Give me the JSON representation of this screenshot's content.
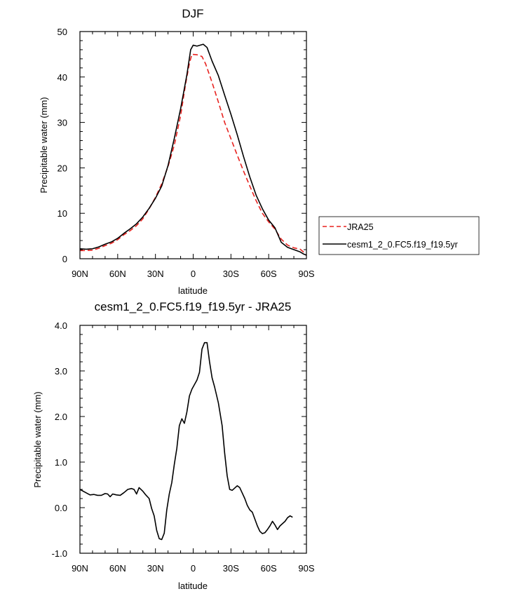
{
  "chart_data": [
    {
      "type": "line",
      "title": "DJF",
      "xlabel": "latitude",
      "ylabel": "Precipitable water (mm)",
      "xlim": [
        90,
        -90
      ],
      "ylim": [
        0,
        50
      ],
      "x_ticks": [
        {
          "value": 90,
          "label": "90N"
        },
        {
          "value": 60,
          "label": "60N"
        },
        {
          "value": 30,
          "label": "30N"
        },
        {
          "value": 0,
          "label": "0"
        },
        {
          "value": -30,
          "label": "30S"
        },
        {
          "value": -60,
          "label": "60S"
        },
        {
          "value": -90,
          "label": "90S"
        }
      ],
      "y_ticks": [
        {
          "value": 0,
          "label": "0"
        },
        {
          "value": 10,
          "label": "10"
        },
        {
          "value": 20,
          "label": "20"
        },
        {
          "value": 30,
          "label": "30"
        },
        {
          "value": 40,
          "label": "40"
        },
        {
          "value": 50,
          "label": "50"
        }
      ],
      "legend": {
        "placement": "right",
        "entries": [
          "JRA25",
          "cesm1_2_0.FC5.f19_f19.5yr"
        ]
      },
      "series": [
        {
          "name": "JRA25",
          "color": "#e8221f",
          "dash": "dashed",
          "points": [
            [
              90,
              1.8
            ],
            [
              85,
              1.8
            ],
            [
              80,
              1.9
            ],
            [
              75,
              2.3
            ],
            [
              70,
              2.9
            ],
            [
              65,
              3.4
            ],
            [
              60,
              4.2
            ],
            [
              55,
              5.3
            ],
            [
              50,
              6.2
            ],
            [
              45,
              7.3
            ],
            [
              40,
              8.8
            ],
            [
              35,
              11.0
            ],
            [
              30,
              13.5
            ],
            [
              25,
              16.5
            ],
            [
              20,
              20.3
            ],
            [
              15,
              25.0
            ],
            [
              10,
              31.5
            ],
            [
              6,
              38.5
            ],
            [
              3,
              43.0
            ],
            [
              1,
              45.0
            ],
            [
              -3,
              44.9
            ],
            [
              -7,
              44.5
            ],
            [
              -10,
              42.8
            ],
            [
              -15,
              38.8
            ],
            [
              -20,
              34.5
            ],
            [
              -25,
              30.0
            ],
            [
              -30,
              26.4
            ],
            [
              -35,
              22.8
            ],
            [
              -40,
              19.3
            ],
            [
              -45,
              16.0
            ],
            [
              -50,
              12.8
            ],
            [
              -55,
              10.0
            ],
            [
              -60,
              8.1
            ],
            [
              -65,
              6.5
            ],
            [
              -70,
              4.3
            ],
            [
              -75,
              3.0
            ],
            [
              -80,
              2.4
            ],
            [
              -85,
              2.1
            ],
            [
              -88,
              1.4
            ],
            [
              -90,
              0.7
            ]
          ]
        },
        {
          "name": "cesm1_2_0.FC5.f19_f19.5yr",
          "color": "#000000",
          "dash": "solid",
          "points": [
            [
              90,
              2.2
            ],
            [
              85,
              2.1
            ],
            [
              80,
              2.2
            ],
            [
              75,
              2.6
            ],
            [
              70,
              3.2
            ],
            [
              65,
              3.7
            ],
            [
              60,
              4.5
            ],
            [
              55,
              5.6
            ],
            [
              50,
              6.6
            ],
            [
              45,
              7.7
            ],
            [
              40,
              9.2
            ],
            [
              35,
              11.1
            ],
            [
              30,
              13.3
            ],
            [
              25,
              16.0
            ],
            [
              20,
              20.5
            ],
            [
              15,
              26.5
            ],
            [
              10,
              33.0
            ],
            [
              5,
              40.5
            ],
            [
              2,
              46.0
            ],
            [
              0,
              47.0
            ],
            [
              -3,
              46.8
            ],
            [
              -8,
              47.2
            ],
            [
              -11,
              46.5
            ],
            [
              -15,
              43.5
            ],
            [
              -20,
              40.3
            ],
            [
              -25,
              36.0
            ],
            [
              -30,
              31.8
            ],
            [
              -35,
              27.3
            ],
            [
              -40,
              22.5
            ],
            [
              -45,
              18.0
            ],
            [
              -50,
              14.0
            ],
            [
              -55,
              11.0
            ],
            [
              -60,
              8.5
            ],
            [
              -65,
              6.8
            ],
            [
              -70,
              3.6
            ],
            [
              -75,
              2.5
            ],
            [
              -80,
              2.0
            ],
            [
              -85,
              1.5
            ],
            [
              -88,
              1.0
            ],
            [
              -90,
              0.8
            ]
          ]
        }
      ]
    },
    {
      "type": "line",
      "title": "cesm1_2_0.FC5.f19_f19.5yr - JRA25",
      "xlabel": "latitude",
      "ylabel": "Precipitable water (mm)",
      "xlim": [
        90,
        -90
      ],
      "ylim": [
        -1.0,
        4.0
      ],
      "x_ticks": [
        {
          "value": 90,
          "label": "90N"
        },
        {
          "value": 60,
          "label": "60N"
        },
        {
          "value": 30,
          "label": "30N"
        },
        {
          "value": 0,
          "label": "0"
        },
        {
          "value": -30,
          "label": "30S"
        },
        {
          "value": -60,
          "label": "60S"
        },
        {
          "value": -90,
          "label": "90S"
        }
      ],
      "y_ticks": [
        {
          "value": -1.0,
          "label": "-1.0"
        },
        {
          "value": 0.0,
          "label": "0.0"
        },
        {
          "value": 1.0,
          "label": "1.0"
        },
        {
          "value": 2.0,
          "label": "2.0"
        },
        {
          "value": 3.0,
          "label": "3.0"
        },
        {
          "value": 4.0,
          "label": "4.0"
        }
      ],
      "series": [
        {
          "name": "",
          "color": "#000000",
          "dash": "solid",
          "points": [
            [
              90,
              0.4
            ],
            [
              86,
              0.34
            ],
            [
              82,
              0.28
            ],
            [
              79,
              0.29
            ],
            [
              76,
              0.27
            ],
            [
              73,
              0.27
            ],
            [
              70,
              0.31
            ],
            [
              68,
              0.3
            ],
            [
              66,
              0.24
            ],
            [
              64,
              0.3
            ],
            [
              61,
              0.28
            ],
            [
              58,
              0.27
            ],
            [
              55,
              0.33
            ],
            [
              52,
              0.4
            ],
            [
              49,
              0.42
            ],
            [
              47,
              0.4
            ],
            [
              45,
              0.3
            ],
            [
              43,
              0.44
            ],
            [
              40,
              0.36
            ],
            [
              38,
              0.29
            ],
            [
              35,
              0.2
            ],
            [
              33,
              -0.02
            ],
            [
              31,
              -0.18
            ],
            [
              29,
              -0.5
            ],
            [
              27,
              -0.68
            ],
            [
              25,
              -0.7
            ],
            [
              23,
              -0.56
            ],
            [
              21,
              -0.05
            ],
            [
              19,
              0.3
            ],
            [
              17,
              0.55
            ],
            [
              15,
              0.95
            ],
            [
              13,
              1.3
            ],
            [
              11,
              1.8
            ],
            [
              9,
              1.95
            ],
            [
              7,
              1.85
            ],
            [
              5,
              2.1
            ],
            [
              3,
              2.45
            ],
            [
              1,
              2.6
            ],
            [
              -1,
              2.7
            ],
            [
              -3,
              2.8
            ],
            [
              -5,
              2.97
            ],
            [
              -7,
              3.48
            ],
            [
              -9,
              3.62
            ],
            [
              -11,
              3.62
            ],
            [
              -13,
              3.2
            ],
            [
              -15,
              2.85
            ],
            [
              -17,
              2.65
            ],
            [
              -20,
              2.3
            ],
            [
              -23,
              1.8
            ],
            [
              -25,
              1.2
            ],
            [
              -27,
              0.7
            ],
            [
              -29,
              0.4
            ],
            [
              -31,
              0.38
            ],
            [
              -33,
              0.43
            ],
            [
              -35,
              0.48
            ],
            [
              -37,
              0.44
            ],
            [
              -39,
              0.32
            ],
            [
              -41,
              0.2
            ],
            [
              -43,
              0.05
            ],
            [
              -45,
              -0.05
            ],
            [
              -47,
              -0.1
            ],
            [
              -49,
              -0.25
            ],
            [
              -51,
              -0.4
            ],
            [
              -53,
              -0.52
            ],
            [
              -55,
              -0.57
            ],
            [
              -57,
              -0.55
            ],
            [
              -59,
              -0.48
            ],
            [
              -61,
              -0.4
            ],
            [
              -63,
              -0.3
            ],
            [
              -65,
              -0.38
            ],
            [
              -67,
              -0.48
            ],
            [
              -69,
              -0.4
            ],
            [
              -71,
              -0.35
            ],
            [
              -73,
              -0.3
            ],
            [
              -75,
              -0.22
            ],
            [
              -77,
              -0.18
            ],
            [
              -79,
              -0.21
            ]
          ]
        }
      ]
    }
  ]
}
